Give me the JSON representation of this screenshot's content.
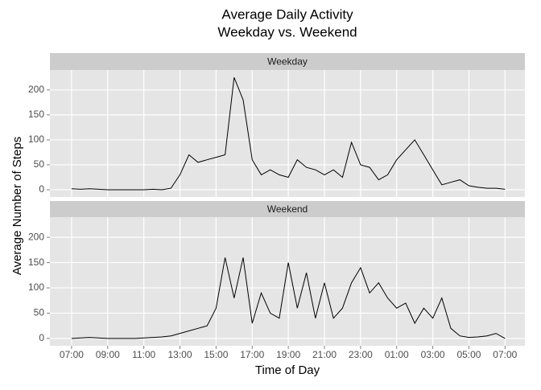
{
  "chart_data": {
    "type": "line",
    "title": "Average Daily Activity",
    "subtitle": "Weekday vs. Weekend",
    "x_label": "Time of Day",
    "y_label": "Average Number of Steps",
    "xlim": [
      -1.2,
      25.1
    ],
    "ylim": [
      -14.5,
      240
    ],
    "xticks": [
      {
        "value": 0,
        "label": "07:00"
      },
      {
        "value": 2,
        "label": "09:00"
      },
      {
        "value": 4,
        "label": "11:00"
      },
      {
        "value": 6,
        "label": "13:00"
      },
      {
        "value": 8,
        "label": "15:00"
      },
      {
        "value": 10,
        "label": "17:00"
      },
      {
        "value": 12,
        "label": "19:00"
      },
      {
        "value": 14,
        "label": "21:00"
      },
      {
        "value": 16,
        "label": "23:00"
      },
      {
        "value": 18,
        "label": "01:00"
      },
      {
        "value": 20,
        "label": "03:00"
      },
      {
        "value": 22,
        "label": "05:00"
      },
      {
        "value": 24,
        "label": "07:00"
      }
    ],
    "yticks": [
      0,
      50,
      100,
      150,
      200
    ],
    "grid": true,
    "x": [
      0,
      0.5,
      1,
      1.5,
      2,
      2.5,
      3,
      3.5,
      4,
      4.5,
      5,
      5.5,
      6,
      6.5,
      7,
      7.5,
      8,
      8.5,
      9,
      9.5,
      10,
      10.5,
      11,
      11.5,
      12,
      12.5,
      13,
      13.5,
      14,
      14.5,
      15,
      15.5,
      16,
      16.5,
      17,
      17.5,
      18,
      18.5,
      19,
      19.5,
      20,
      20.5,
      21,
      21.5,
      22,
      22.5,
      23,
      23.5,
      24
    ],
    "series": [
      {
        "name": "Weekday",
        "color": "#000000",
        "values": [
          2,
          1,
          2,
          1,
          0,
          0,
          0,
          0,
          0,
          1,
          0,
          3,
          30,
          70,
          55,
          60,
          65,
          70,
          225,
          180,
          60,
          30,
          40,
          30,
          25,
          60,
          45,
          40,
          30,
          40,
          25,
          95,
          50,
          45,
          20,
          30,
          60,
          80,
          100,
          70,
          40,
          10,
          15,
          20,
          8,
          5,
          3,
          3,
          1
        ]
      },
      {
        "name": "Weekend",
        "color": "#000000",
        "values": [
          0,
          1,
          2,
          1,
          0,
          0,
          0,
          0,
          1,
          2,
          3,
          5,
          10,
          15,
          20,
          25,
          60,
          160,
          80,
          160,
          30,
          90,
          50,
          40,
          150,
          60,
          130,
          40,
          110,
          40,
          60,
          110,
          140,
          90,
          110,
          80,
          60,
          70,
          30,
          60,
          40,
          80,
          20,
          5,
          2,
          3,
          5,
          10,
          0
        ]
      }
    ]
  }
}
